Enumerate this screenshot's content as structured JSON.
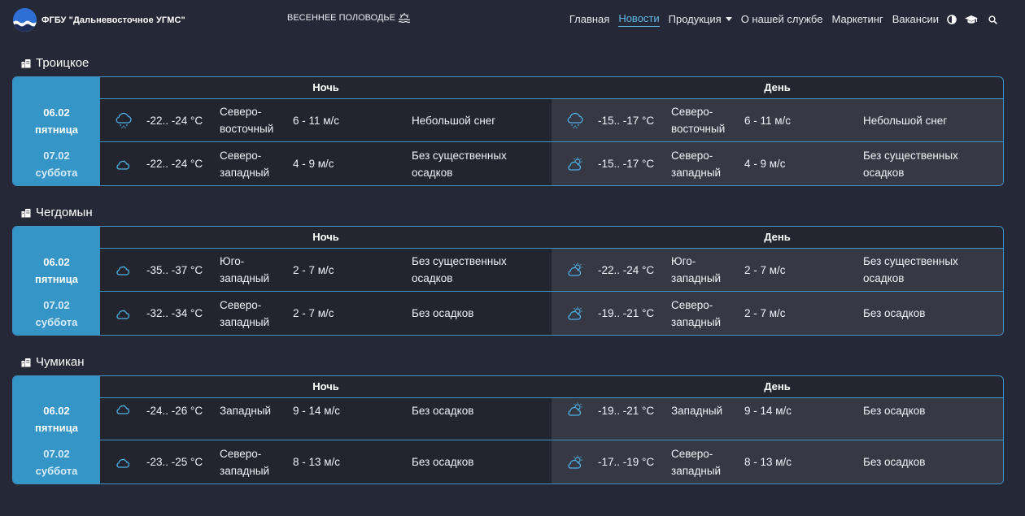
{
  "header": {
    "brand": "ФГБУ \"Дальневосточное УГМС\"",
    "flood_link": "ВЕСЕННЕЕ ПОЛОВОДЬЕ",
    "nav": [
      {
        "label": "Главная",
        "active": false
      },
      {
        "label": "Новости",
        "active": true
      },
      {
        "label": "Продукция",
        "active": false,
        "dropdown": true
      },
      {
        "label": "О нашей службе",
        "active": false
      },
      {
        "label": "Маркетинг",
        "active": false
      },
      {
        "label": "Вакансии",
        "active": false
      }
    ],
    "icons": [
      "contrast-icon",
      "graduation-cap-icon",
      "search-icon"
    ]
  },
  "table_headers": {
    "night": "Ночь",
    "day": "День"
  },
  "stations": [
    {
      "name": "Троицкое",
      "rows": [
        {
          "date": "06.02",
          "weekday": "пятница",
          "night": {
            "icon": "snow-cloud-icon",
            "temp": "-22.. -24 °C",
            "wind_dir_1": "Северо-",
            "wind_dir_2": "восточный",
            "wind_speed": "6 - 11 м/с",
            "precip_1": "Небольшой снег",
            "precip_2": ""
          },
          "day": {
            "icon": "snow-cloud-icon",
            "temp": "-15.. -17 °C",
            "wind_dir_1": "Северо-",
            "wind_dir_2": "восточный",
            "wind_speed": "6 - 11 м/с",
            "precip_1": "Небольшой снег",
            "precip_2": ""
          }
        },
        {
          "date": "07.02",
          "weekday": "суббота",
          "night": {
            "icon": "cloud-moon-icon",
            "temp": "-22.. -24 °C",
            "wind_dir_1": "Северо-",
            "wind_dir_2": "западный",
            "wind_speed": "4 - 9 м/с",
            "precip_1": "Без существенных",
            "precip_2": "осадков"
          },
          "day": {
            "icon": "cloud-sun-icon",
            "temp": "-15.. -17 °C",
            "wind_dir_1": "Северо-",
            "wind_dir_2": "западный",
            "wind_speed": "4 - 9 м/с",
            "precip_1": "Без существенных",
            "precip_2": "осадков"
          }
        }
      ]
    },
    {
      "name": "Чегдомын",
      "rows": [
        {
          "date": "06.02",
          "weekday": "пятница",
          "night": {
            "icon": "cloud-moon-icon",
            "temp": "-35.. -37 °C",
            "wind_dir_1": "Юго-",
            "wind_dir_2": "западный",
            "wind_speed": "2 - 7 м/с",
            "precip_1": "Без существенных",
            "precip_2": "осадков"
          },
          "day": {
            "icon": "cloud-sun-icon",
            "temp": "-22.. -24 °C",
            "wind_dir_1": "Юго-",
            "wind_dir_2": "западный",
            "wind_speed": "2 - 7 м/с",
            "precip_1": "Без существенных",
            "precip_2": "осадков"
          }
        },
        {
          "date": "07.02",
          "weekday": "суббота",
          "night": {
            "icon": "cloud-moon-icon",
            "temp": "-32.. -34 °C",
            "wind_dir_1": "Северо-",
            "wind_dir_2": "западный",
            "wind_speed": "2 - 7 м/с",
            "precip_1": "Без осадков",
            "precip_2": ""
          },
          "day": {
            "icon": "cloud-sun-icon",
            "temp": "-19.. -21 °C",
            "wind_dir_1": "Северо-",
            "wind_dir_2": "западный",
            "wind_speed": "2 - 7 м/с",
            "precip_1": "Без осадков",
            "precip_2": ""
          }
        }
      ]
    },
    {
      "name": "Чумикан",
      "rows": [
        {
          "date": "06.02",
          "weekday": "пятница",
          "night": {
            "icon": "cloud-moon-icon",
            "temp": "-24.. -26 °C",
            "wind_dir_1": "Западный",
            "wind_dir_2": "",
            "wind_speed": "9 - 14 м/с",
            "precip_1": "Без осадков",
            "precip_2": ""
          },
          "day": {
            "icon": "cloud-sun-icon",
            "temp": "-19.. -21 °C",
            "wind_dir_1": "Западный",
            "wind_dir_2": "",
            "wind_speed": "9 - 14 м/с",
            "precip_1": "Без осадков",
            "precip_2": ""
          }
        },
        {
          "date": "07.02",
          "weekday": "суббота",
          "night": {
            "icon": "cloud-moon-icon",
            "temp": "-23.. -25 °C",
            "wind_dir_1": "Северо-",
            "wind_dir_2": "западный",
            "wind_speed": "8 - 13 м/с",
            "precip_1": "Без осадков",
            "precip_2": ""
          },
          "day": {
            "icon": "cloud-sun-icon",
            "temp": "-17.. -19 °C",
            "wind_dir_1": "Северо-",
            "wind_dir_2": "западный",
            "wind_speed": "8 - 13 м/с",
            "precip_1": "Без осадков",
            "precip_2": ""
          }
        }
      ]
    }
  ],
  "colors": {
    "background": "#252836",
    "accent": "#3595c7",
    "link_active": "#62b6e6",
    "icon": "#4fb0e6"
  }
}
